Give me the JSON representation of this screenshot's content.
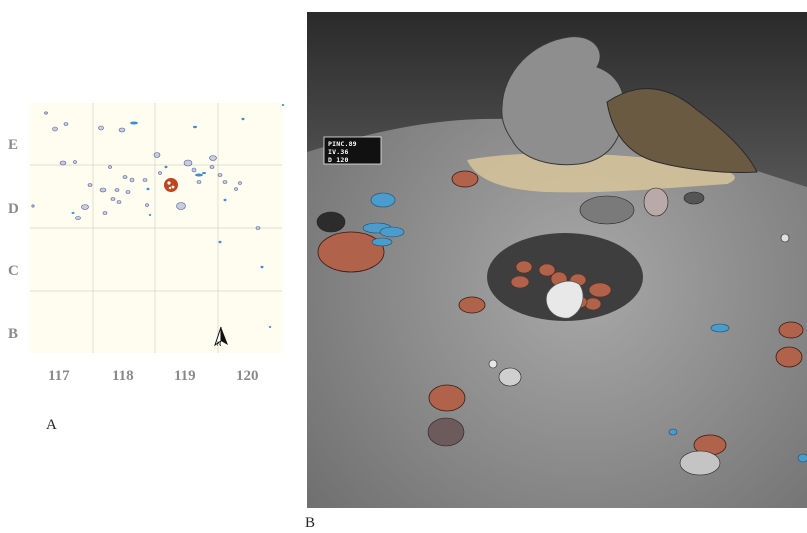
{
  "panel_a": {
    "label": "A",
    "row_labels": [
      "E",
      "D",
      "C",
      "B"
    ],
    "col_labels": [
      "117",
      "118",
      "119",
      "120"
    ],
    "north_label": "N",
    "colors": {
      "background": "#fffdf0",
      "grid": "#d9d6c6",
      "stone_fill": "#c8cdd9",
      "stone_stroke": "#4a5aa0",
      "bone_blue": "#3a8fd6",
      "hearth_red": "#c0441e"
    }
  },
  "panel_b": {
    "label": "B",
    "ticket_lines": [
      "PINC.89",
      "IV.36",
      "D 120"
    ],
    "colors": {
      "ground": "#8f8f8f",
      "wall": "#3a3a3a",
      "stone_red": "#b0624a",
      "bone_blue": "#4a9ccc",
      "sediment_tan": "#d8c49a",
      "hearth_dark": "#3e3e3e"
    }
  }
}
